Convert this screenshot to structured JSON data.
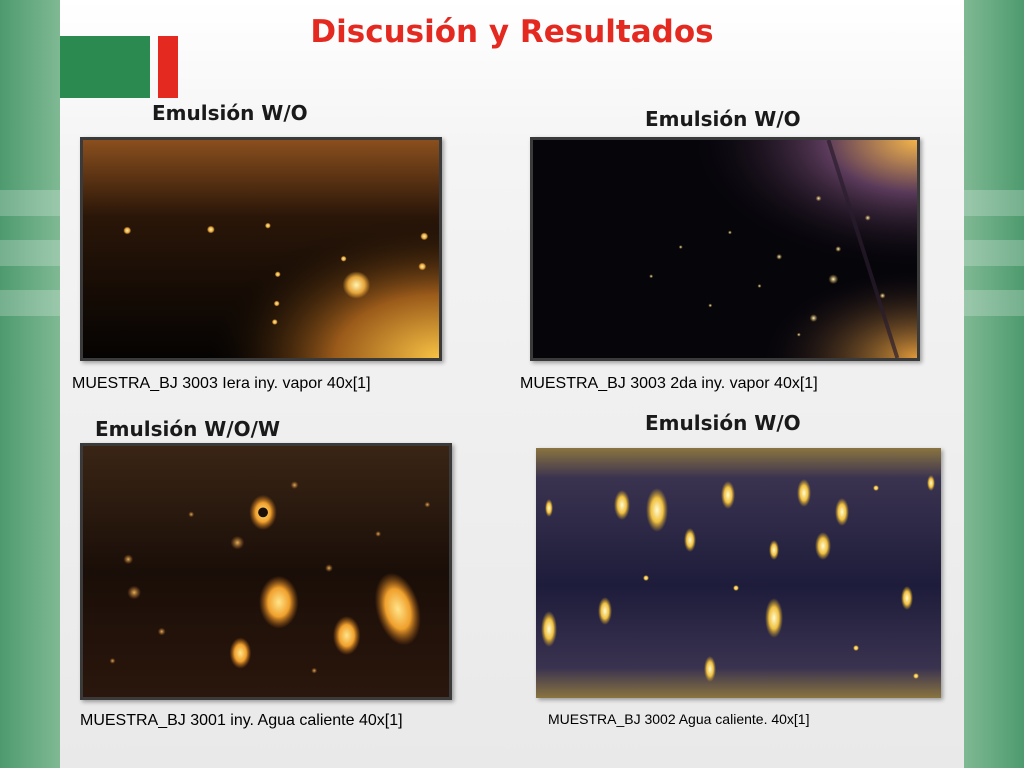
{
  "slide": {
    "title": "Discusión y Resultados",
    "panels": [
      {
        "heading": "Emulsión W/O",
        "caption": "MUESTRA_BJ 3003 Iera iny. vapor 40x[1]"
      },
      {
        "heading": "Emulsión W/O",
        "caption": "MUESTRA_BJ 3003 2da iny. vapor 40x[1]"
      },
      {
        "heading": "Emulsión W/O/W",
        "caption": "MUESTRA_BJ 3001 iny. Agua caliente 40x[1]"
      },
      {
        "heading": "Emulsión W/O",
        "caption": "MUESTRA_BJ 3002 Agua caliente. 40x[1]"
      }
    ]
  },
  "colors": {
    "title": "#e42a20",
    "side_green": "#4e9a6e",
    "logo_green": "#2b8a50",
    "logo_red": "#e42a20"
  }
}
